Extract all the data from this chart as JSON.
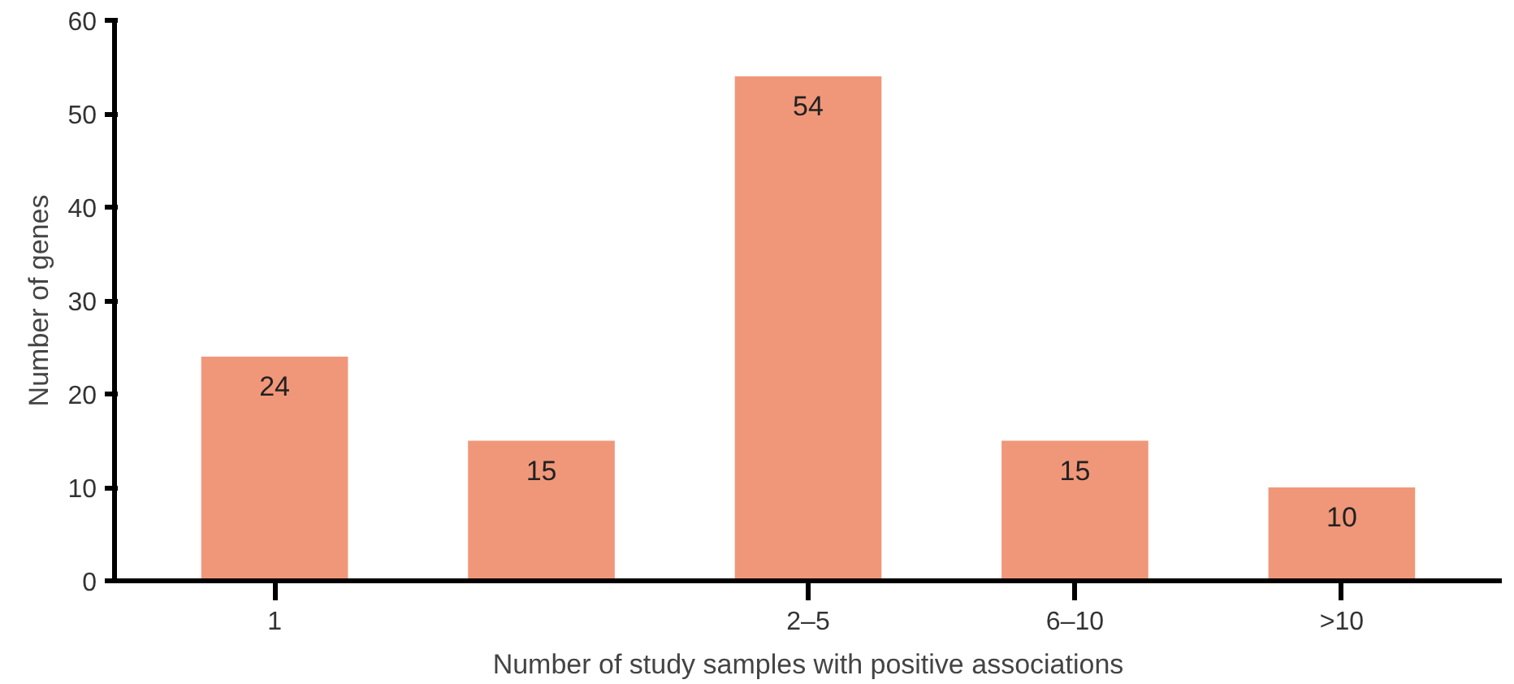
{
  "chart_data": {
    "type": "bar",
    "xlabel": "Number of study samples with positive associations",
    "ylabel": "Number of genes",
    "categories": [
      "1",
      null,
      "2–5",
      "6–10",
      ">10"
    ],
    "values": [
      24,
      15,
      54,
      15,
      10
    ],
    "color": "#f0977a",
    "data_labels": true,
    "ylim": [
      0,
      60
    ],
    "yticks": [
      0,
      10,
      20,
      30,
      40,
      50,
      60
    ],
    "grid": false
  }
}
